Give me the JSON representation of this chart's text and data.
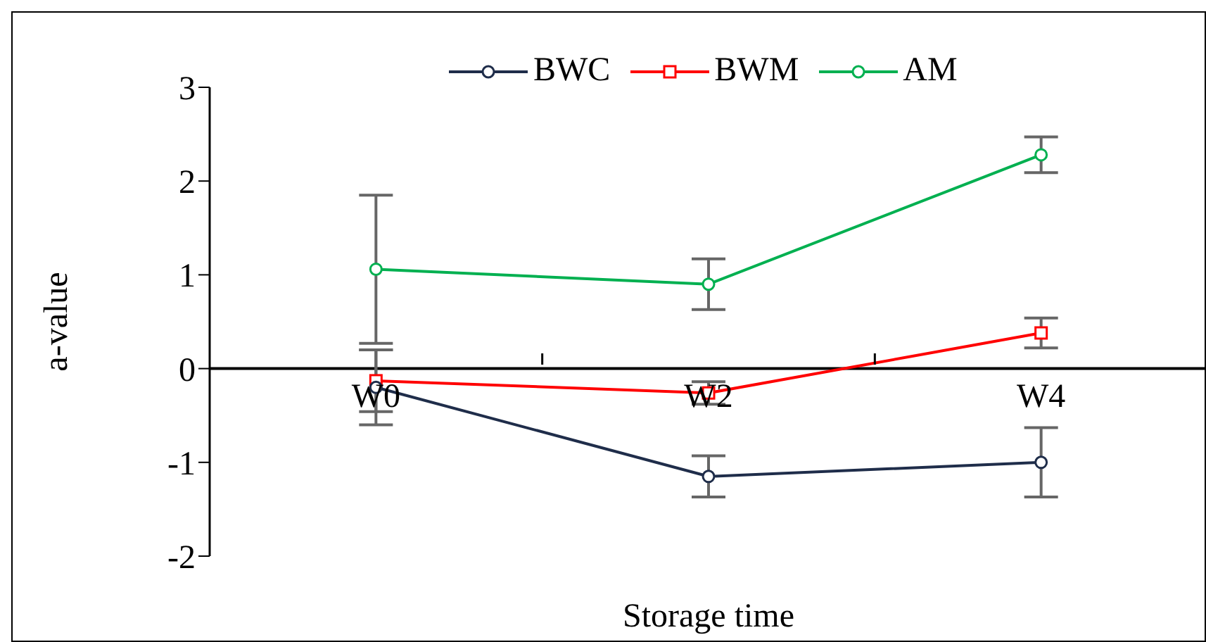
{
  "chart_data": {
    "type": "line",
    "xlabel": "Storage time",
    "ylabel": "a-value",
    "categories": [
      "W0",
      "W2",
      "W4"
    ],
    "series": [
      {
        "name": "BWC",
        "color": "#1f2d4a",
        "values": [
          -0.2,
          -1.15,
          -1.0
        ],
        "errors": [
          0.4,
          0.22,
          0.37
        ]
      },
      {
        "name": "BWM",
        "color": "#ff0000",
        "marker": "square",
        "values": [
          -0.13,
          -0.26,
          0.38
        ],
        "errors": [
          0.33,
          0.12,
          0.16
        ]
      },
      {
        "name": "AM",
        "color": "#00b050",
        "values": [
          1.06,
          0.9,
          2.28
        ],
        "errors": [
          0.79,
          0.27,
          0.19
        ]
      }
    ],
    "ylim": [
      -2,
      3
    ],
    "yticks": [
      -2,
      -1,
      0,
      1,
      2,
      3
    ],
    "grid": false,
    "legend": "top",
    "marker": "circle",
    "line_style": "solid"
  }
}
